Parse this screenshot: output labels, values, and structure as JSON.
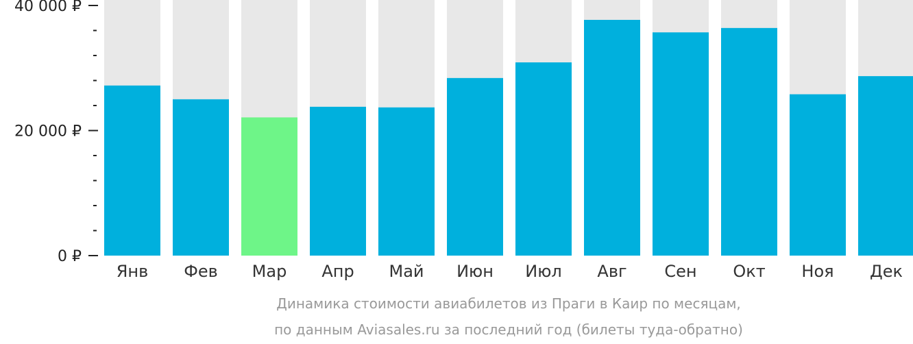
{
  "chart_data": {
    "type": "bar",
    "title": "",
    "xlabel": "",
    "ylabel": "",
    "categories": [
      "Янв",
      "Фев",
      "Мар",
      "Апр",
      "Май",
      "Июн",
      "Июл",
      "Авг",
      "Сен",
      "Окт",
      "Ноя",
      "Дек"
    ],
    "values": [
      27200,
      25000,
      22100,
      23800,
      23700,
      28400,
      30900,
      37700,
      35700,
      36400,
      25800,
      28700
    ],
    "ylim": [
      0,
      40000
    ],
    "yticks": [
      0,
      20000,
      40000
    ],
    "ytick_labels": [
      "0 ₽",
      "20 000 ₽",
      "40 000 ₽"
    ],
    "minor_ticks_per_interval": 5,
    "highlight_index": 2,
    "grid": false,
    "caption": [
      "Динамика стоимости авиабилетов из Праги в Каир по месяцам,",
      "по данным Aviasales.ru за последний год (билеты туда-обратно)"
    ],
    "colors": {
      "bar": "#00b0dd",
      "highlight": "#6ef588",
      "background_bar": "#e8e8e8",
      "axis": "#222222"
    }
  }
}
